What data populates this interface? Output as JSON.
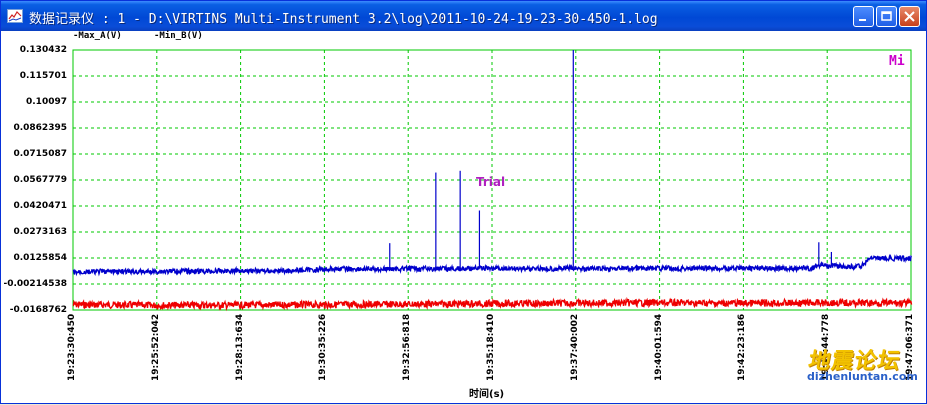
{
  "window": {
    "title": "数据记录仪 : 1 - D:\\VIRTINS Multi-Instrument 3.2\\log\\2011-10-24-19-23-30-450-1.log",
    "buttons": [
      "minimize",
      "maximize",
      "close"
    ]
  },
  "legend": [
    {
      "label": "-Max_A(V)",
      "color": "#00008b"
    },
    {
      "label": "-Min_B(V)",
      "color": "#ff0000"
    }
  ],
  "annotations": {
    "mi": "Mi",
    "trial": "Trial"
  },
  "watermark": {
    "chinese": "地震论坛",
    "url": "dizhenluntan.com"
  },
  "colors": {
    "grid": "#00c800",
    "max_a": "#0000cc",
    "min_b": "#ee0000",
    "title_bar": "#0a4dd8"
  },
  "chart_data": {
    "type": "line",
    "title": "",
    "xlabel": "时间(s)",
    "ylabel": "",
    "ylim": [
      -0.0168762,
      0.130432
    ],
    "yticks": [
      "0.130432",
      "0.115701",
      "0.10097",
      "0.0862395",
      "0.0715087",
      "0.0567779",
      "0.0420471",
      "0.0273163",
      "0.0125854",
      "-0.00214538",
      "-0.0168762"
    ],
    "xticks": [
      "19:23:30:450",
      "19:25:52:042",
      "19:28:13:634",
      "19:30:35:226",
      "19:32:56:818",
      "19:35:18:410",
      "19:37:40:002",
      "19:40:01:594",
      "19:42:23:186",
      "19:44:44:778",
      "19:47:06:371"
    ],
    "series": [
      {
        "name": "Max_A(V)",
        "x_frac": [
          0,
          0.04,
          0.08,
          0.12,
          0.16,
          0.2,
          0.24,
          0.28,
          0.32,
          0.36,
          0.4,
          0.44,
          0.48,
          0.52,
          0.56,
          0.6,
          0.64,
          0.68,
          0.72,
          0.76,
          0.8,
          0.84,
          0.88,
          0.899,
          0.9,
          0.91,
          0.92,
          0.93,
          0.94,
          0.95,
          0.97,
          1.0
        ],
        "values": [
          0.0045,
          0.005,
          0.0047,
          0.0052,
          0.005,
          0.0055,
          0.0052,
          0.0058,
          0.0065,
          0.0062,
          0.0066,
          0.0064,
          0.0067,
          0.0066,
          0.0066,
          0.0067,
          0.0065,
          0.0068,
          0.0067,
          0.0067,
          0.0068,
          0.0066,
          0.0068,
          0.0095,
          0.008,
          0.0085,
          0.0075,
          0.0077,
          0.0078,
          0.0125,
          0.0122,
          0.0125
        ],
        "spikes": [
          {
            "x_frac": 0.378,
            "value": 0.021
          },
          {
            "x_frac": 0.433,
            "value": 0.061
          },
          {
            "x_frac": 0.462,
            "value": 0.062
          },
          {
            "x_frac": 0.485,
            "value": 0.0395
          },
          {
            "x_frac": 0.597,
            "value": 0.130432
          },
          {
            "x_frac": 0.89,
            "value": 0.0215
          },
          {
            "x_frac": 0.905,
            "value": 0.016
          }
        ]
      },
      {
        "name": "Min_B(V)",
        "x_frac": [
          0,
          0.1,
          0.2,
          0.3,
          0.4,
          0.5,
          0.6,
          0.7,
          0.8,
          0.9,
          1.0
        ],
        "values": [
          -0.0138,
          -0.0142,
          -0.0141,
          -0.0139,
          -0.0136,
          -0.0133,
          -0.013,
          -0.0128,
          -0.0131,
          -0.0128,
          -0.013
        ]
      }
    ],
    "grid": true,
    "legend_position": "top-left"
  }
}
